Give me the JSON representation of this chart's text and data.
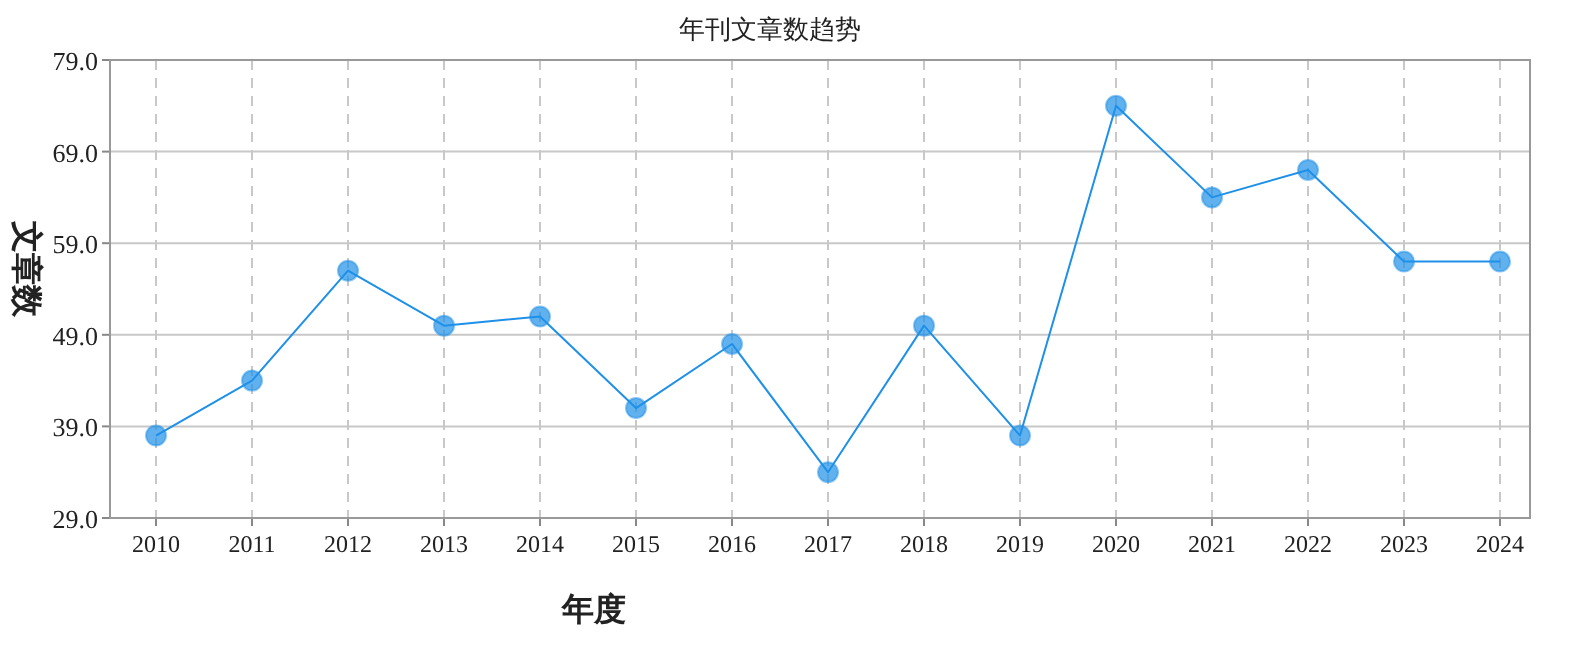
{
  "chart_data": {
    "type": "line",
    "title": "年刊文章数趋势",
    "xlabel": "年度",
    "ylabel": "文章数",
    "categories": [
      "2010",
      "2011",
      "2012",
      "2013",
      "2014",
      "2015",
      "2016",
      "2017",
      "2018",
      "2019",
      "2020",
      "2021",
      "2022",
      "2023",
      "2024"
    ],
    "series": [
      {
        "color": "#1e90e8",
        "values": [
          38,
          44,
          56,
          50,
          51,
          41,
          48,
          34,
          50,
          38,
          74,
          64,
          67,
          57,
          57
        ]
      }
    ],
    "ylim": [
      29,
      79
    ],
    "yticks": [
      {
        "value": 29,
        "label": "29.0"
      },
      {
        "value": 39,
        "label": "39.0"
      },
      {
        "value": 49,
        "label": "49.0"
      },
      {
        "value": 59,
        "label": "59.0"
      },
      {
        "value": 69,
        "label": "69.0"
      },
      {
        "value": 79,
        "label": "79.0"
      }
    ],
    "grid": true,
    "marker": "circle",
    "line_style": "solid"
  }
}
